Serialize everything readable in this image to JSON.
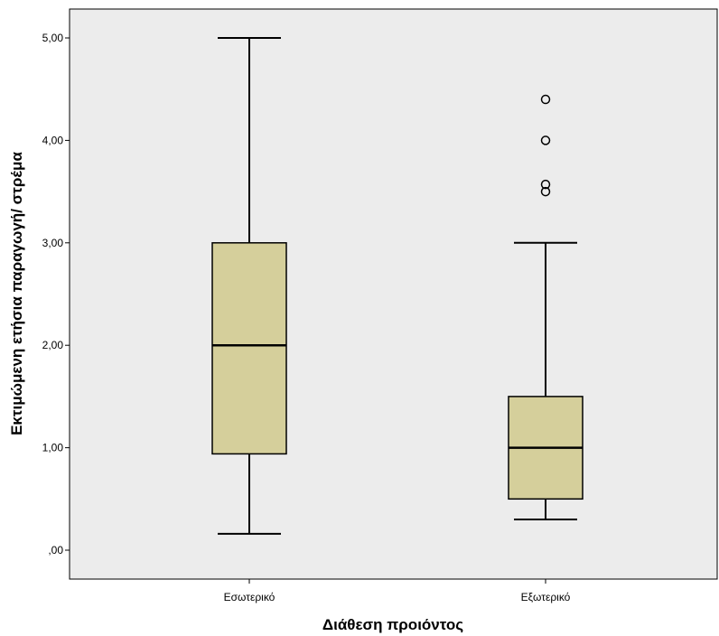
{
  "chart_data": {
    "type": "boxplot",
    "xlabel": "Διάθεση προιόντος",
    "ylabel": "Εκτιμώμενη ετήσια παραγωγή/ στρέμα",
    "ylim": [
      -0.05,
      5.5
    ],
    "yticks": [
      0,
      1,
      2,
      3,
      4,
      5
    ],
    "ytick_labels": [
      ",00",
      "1,00",
      "2,00",
      "3,00",
      "4,00",
      "5,00"
    ],
    "grid": false,
    "colors": {
      "plot_background": "#ececec",
      "box_fill": "#d5cf9b",
      "stroke": "#000000"
    },
    "categories": [
      "Εσωτερικό",
      "Εξωτερικό"
    ],
    "boxes": [
      {
        "category": "Εσωτερικό",
        "whisker_low": 0.16,
        "q1": 0.94,
        "median": 2.0,
        "q3": 3.0,
        "whisker_high": 5.0,
        "outliers": []
      },
      {
        "category": "Εξωτερικό",
        "whisker_low": 0.3,
        "q1": 0.5,
        "median": 1.0,
        "q3": 1.5,
        "whisker_high": 3.0,
        "outliers": [
          3.5,
          3.57,
          4.0,
          4.4
        ]
      }
    ]
  }
}
